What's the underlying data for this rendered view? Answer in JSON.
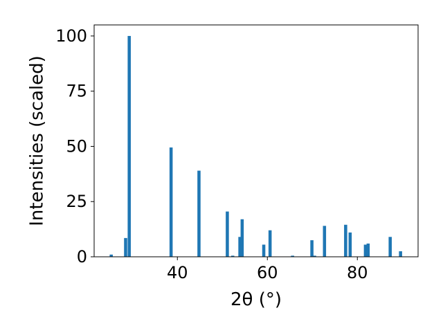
{
  "chart_data": {
    "type": "bar",
    "title": "",
    "xlabel": "2θ (°)",
    "ylabel": "Intensities (scaled)",
    "xlim": [
      21.5,
      93.5
    ],
    "ylim": [
      0,
      105
    ],
    "x_ticks": [
      40,
      60,
      80
    ],
    "x_tick_labels": [
      "40",
      "60",
      "80"
    ],
    "y_ticks": [
      0,
      25,
      50,
      75,
      100
    ],
    "y_tick_labels": [
      "0",
      "25",
      "50",
      "75",
      "100"
    ],
    "grid": false,
    "bar_width": 0.7,
    "bar_color": "#1f77b4",
    "x": [
      25.3,
      28.5,
      29.3,
      38.6,
      44.8,
      51.1,
      52.3,
      53.9,
      54.4,
      59.2,
      60.6,
      65.6,
      69.9,
      70.5,
      72.7,
      77.4,
      78.4,
      81.8,
      82.4,
      87.3,
      89.6
    ],
    "values": [
      1.0,
      8.5,
      100.0,
      49.5,
      39.0,
      20.5,
      0.5,
      9.0,
      17.0,
      5.5,
      12.0,
      0.5,
      7.5,
      0.5,
      14.0,
      14.5,
      11.0,
      5.5,
      6.0,
      9.0,
      2.5
    ]
  }
}
